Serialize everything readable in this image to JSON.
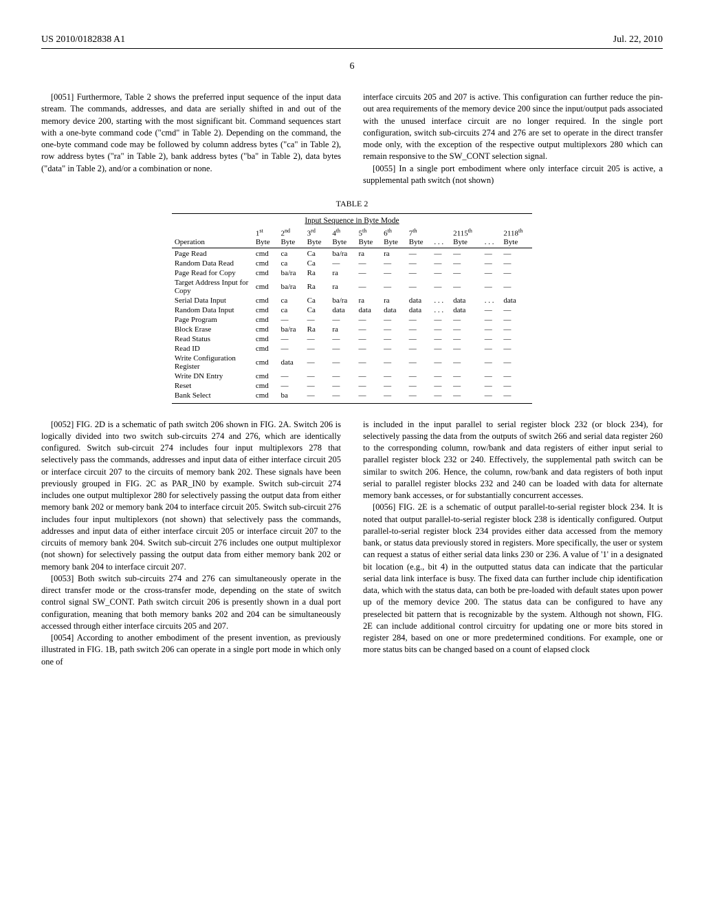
{
  "header": {
    "pub_number": "US 2010/0182838 A1",
    "date": "Jul. 22, 2010"
  },
  "page_number": "6",
  "paragraphs": {
    "p51": "[0051]  Furthermore, Table 2 shows the preferred input sequence of the input data stream. The commands, addresses, and data are serially shifted in and out of the memory device 200, starting with the most significant bit. Command sequences start with a one-byte command code (\"cmd\" in Table 2). Depending on the command, the one-byte command code may be followed by column address bytes (\"ca\" in Table 2), row address bytes (\"ra\" in Table 2), bank address bytes (\"ba\" in Table 2), data bytes (\"data\" in Table 2), and/or a combination or none.",
    "p52": "[0052]  FIG. 2D is a schematic of path switch 206 shown in FIG. 2A. Switch 206 is logically divided into two switch sub-circuits 274 and 276, which are identically configured. Switch sub-circuit 274 includes four input multiplexors 278 that selectively pass the commands, addresses and input data of either interface circuit 205 or interface circuit 207 to the circuits of memory bank 202. These signals have been previously grouped in FIG. 2C as PAR_IN0 by example. Switch sub-circuit 274 includes one output multiplexor 280 for selectively passing the output data from either memory bank 202 or memory bank 204 to interface circuit 205. Switch sub-circuit 276 includes four input multiplexors (not shown) that selectively pass the commands, addresses and input data of either interface circuit 205 or interface circuit 207 to the circuits of memory bank 204. Switch sub-circuit 276 includes one output multiplexor (not shown) for selectively passing the output data from either memory bank 202 or memory bank 204 to interface circuit 207.",
    "p53": "[0053]  Both switch sub-circuits 274 and 276 can simultaneously operate in the direct transfer mode or the cross-transfer mode, depending on the state of switch control signal SW_CONT. Path switch circuit 206 is presently shown in a dual port configuration, meaning that both memory banks 202 and 204 can be simultaneously accessed through either interface circuits 205 and 207.",
    "p54": "[0054]  According to another embodiment of the present invention, as previously illustrated in FIG. 1B, path switch 206 can operate in a single port mode in which only one of",
    "p54b": "interface circuits 205 and 207 is active. This configuration can further reduce the pin-out area requirements of the memory device 200 since the input/output pads associated with the unused interface circuit are no longer required. In the single port configuration, switch sub-circuits 274 and 276 are set to operate in the direct transfer mode only, with the exception of the respective output multiplexors 280 which can remain responsive to the SW_CONT selection signal.",
    "p55": "[0055]  In a single port embodiment where only interface circuit 205 is active, a supplemental path switch (not shown)",
    "p55b": "is included in the input parallel to serial register block 232 (or block 234), for selectively passing the data from the outputs of switch 266 and serial data register 260 to the corresponding column, row/bank and data registers of either input serial to parallel register block 232 or 240. Effectively, the supplemental path switch can be similar to switch 206. Hence, the column, row/bank and data registers of both input serial to parallel register blocks 232 and 240 can be loaded with data for alternate memory bank accesses, or for substantially concurrent accesses.",
    "p56": "[0056]  FIG. 2E is a schematic of output parallel-to-serial register block 234. It is noted that output parallel-to-serial register block 238 is identically configured. Output parallel-to-serial register block 234 provides either data accessed from the memory bank, or status data previously stored in registers. More specifically, the user or system can request a status of either serial data links 230 or 236. A value of '1' in a designated bit location (e.g., bit 4) in the outputted status data can indicate that the particular serial data link interface is busy. The fixed data can further include chip identification data, which with the status data, can both be pre-loaded with default states upon power up of the memory device 200. The status data can be configured to have any preselected bit pattern that is recognizable by the system. Although not shown, FIG. 2E can include additional control circuitry for updating one or more bits stored in register 284, based on one or more predetermined conditions. For example, one or more status bits can be changed based on a count of elapsed clock"
  },
  "table": {
    "title": "TABLE 2",
    "subtitle": "Input Sequence in Byte Mode",
    "columns": [
      "Operation",
      "1st Byte",
      "2nd Byte",
      "3rd Byte",
      "4th Byte",
      "5th Byte",
      "6th Byte",
      "7th Byte",
      ". . .",
      "2115th Byte",
      ". . .",
      "2118th Byte"
    ],
    "rows": [
      [
        "Page Read",
        "cmd",
        "ca",
        "Ca",
        "ba/ra",
        "ra",
        "ra",
        "—",
        "—",
        "—",
        "—",
        "—"
      ],
      [
        "Random Data Read",
        "cmd",
        "ca",
        "Ca",
        "—",
        "—",
        "—",
        "—",
        "—",
        "—",
        "—",
        "—"
      ],
      [
        "Page Read for Copy",
        "cmd",
        "ba/ra",
        "Ra",
        "ra",
        "—",
        "—",
        "—",
        "—",
        "—",
        "—",
        "—"
      ],
      [
        "Target Address Input for Copy",
        "cmd",
        "ba/ra",
        "Ra",
        "ra",
        "—",
        "—",
        "—",
        "—",
        "—",
        "—",
        "—"
      ],
      [
        "Serial Data Input",
        "cmd",
        "ca",
        "Ca",
        "ba/ra",
        "ra",
        "ra",
        "data",
        ". . .",
        "data",
        ". . .",
        "data"
      ],
      [
        "Random Data Input",
        "cmd",
        "ca",
        "Ca",
        "data",
        "data",
        "data",
        "data",
        ". . .",
        "data",
        "—",
        "—"
      ],
      [
        "Page Program",
        "cmd",
        "—",
        "—",
        "—",
        "—",
        "—",
        "—",
        "—",
        "—",
        "—",
        "—"
      ],
      [
        "Block Erase",
        "cmd",
        "ba/ra",
        "Ra",
        "ra",
        "—",
        "—",
        "—",
        "—",
        "—",
        "—",
        "—"
      ],
      [
        "Read Status",
        "cmd",
        "—",
        "—",
        "—",
        "—",
        "—",
        "—",
        "—",
        "—",
        "—",
        "—"
      ],
      [
        "Read ID",
        "cmd",
        "—",
        "—",
        "—",
        "—",
        "—",
        "—",
        "—",
        "—",
        "—",
        "—"
      ],
      [
        "Write Configuration Register",
        "cmd",
        "data",
        "—",
        "—",
        "—",
        "—",
        "—",
        "—",
        "—",
        "—",
        "—"
      ],
      [
        "Write DN Entry",
        "cmd",
        "—",
        "—",
        "—",
        "—",
        "—",
        "—",
        "—",
        "—",
        "—",
        "—"
      ],
      [
        "Reset",
        "cmd",
        "—",
        "—",
        "—",
        "—",
        "—",
        "—",
        "—",
        "—",
        "—",
        "—"
      ],
      [
        "Bank Select",
        "cmd",
        "ba",
        "—",
        "—",
        "—",
        "—",
        "—",
        "—",
        "—",
        "—",
        "—"
      ]
    ]
  }
}
